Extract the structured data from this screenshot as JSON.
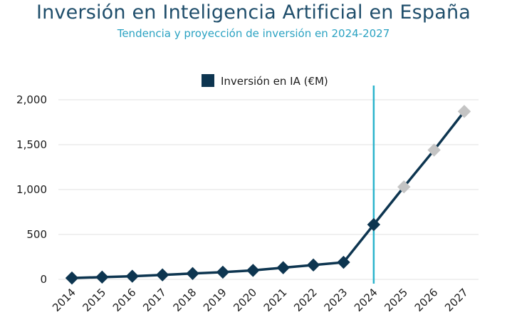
{
  "chart_data": {
    "type": "line",
    "title": "Inversión en Inteligencia Artificial en España",
    "subtitle": "Tendencia y proyección de inversión en 2024-2027",
    "categories": [
      "2014",
      "2015",
      "2016",
      "2017",
      "2018",
      "2019",
      "2020",
      "2021",
      "2022",
      "2023",
      "2024",
      "2025",
      "2026",
      "2027"
    ],
    "series": [
      {
        "name": "Inversión en IA (€M)",
        "values": [
          15,
          25,
          35,
          50,
          65,
          80,
          100,
          130,
          160,
          190,
          610,
          1030,
          1440,
          1870
        ],
        "projected": [
          false,
          false,
          false,
          false,
          false,
          false,
          false,
          false,
          false,
          false,
          false,
          true,
          true,
          true
        ]
      }
    ],
    "yticks": [
      "0",
      "500",
      "1,000",
      "1,500",
      "2,000"
    ],
    "ytick_values": [
      0,
      500,
      1000,
      1500,
      2000
    ],
    "ylim": [
      0,
      2000
    ],
    "reference_line_category": "2024",
    "legend_position": "top-center",
    "xlabel": "",
    "ylabel": "",
    "colors": {
      "series": "#0d3550",
      "projected_marker": "#c4c4c4",
      "reference_line": "#2bb3cc",
      "grid": "#e1e1e1",
      "title": "#1f4e6b",
      "subtitle": "#2aa2c2"
    }
  }
}
